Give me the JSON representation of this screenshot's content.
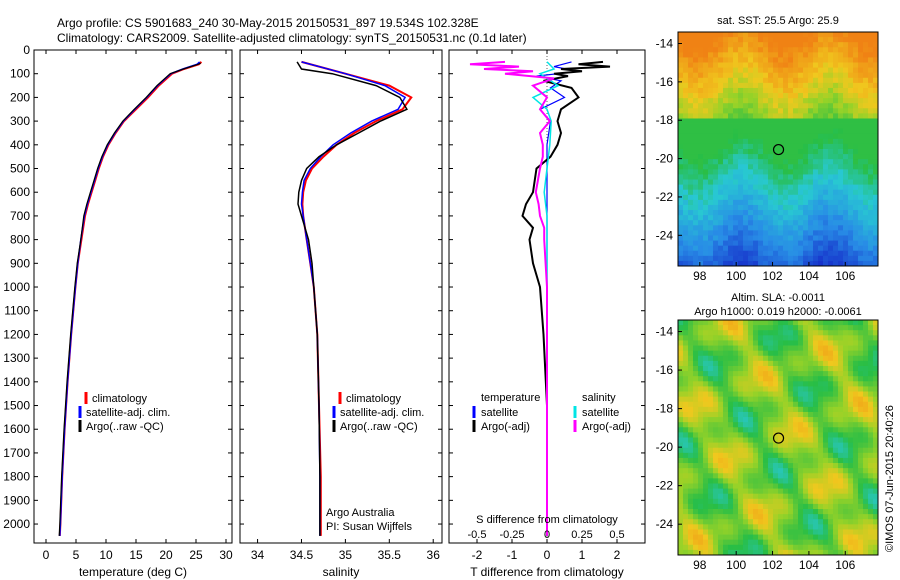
{
  "header": {
    "line1": "Argo profile: CS 5901683_240 30-May-2015 20150531_897 19.534S 102.328E",
    "line2": "Climatology: CARS2009. Satellite-adjusted climatology: synTS_20150531.nc (0.1d later)"
  },
  "colors": {
    "climatology": "#ff0000",
    "satellite": "#0000ff",
    "argo": "#000000",
    "sal_satellite": "#00e5e5",
    "sal_argo": "#ff00ff"
  },
  "chart_data": [
    {
      "id": "temperature",
      "type": "line",
      "xlabel": "temperature (deg C)",
      "ylabel": "",
      "xlim": [
        -2,
        31
      ],
      "ylim": [
        2080,
        0
      ],
      "xticks": [
        0,
        5,
        10,
        15,
        20,
        25,
        30
      ],
      "yticks": [
        0,
        100,
        200,
        300,
        400,
        500,
        600,
        700,
        800,
        900,
        1000,
        1100,
        1200,
        1300,
        1400,
        1500,
        1600,
        1700,
        1800,
        1900,
        2000
      ],
      "legend": [
        "climatology",
        "satellite-adj. clim.",
        "Argo(..raw -QC)"
      ],
      "series": [
        {
          "name": "climatology",
          "depth": [
            50,
            60,
            80,
            100,
            150,
            200,
            250,
            300,
            350,
            400,
            450,
            500,
            550,
            600,
            650,
            700,
            800,
            900,
            1000,
            1200,
            1400,
            1600,
            1800,
            2000,
            2050
          ],
          "values": [
            25.9,
            25.5,
            23.0,
            21.0,
            18.8,
            17.0,
            15.0,
            13.0,
            11.6,
            10.4,
            9.5,
            8.8,
            8.2,
            7.6,
            7.0,
            6.5,
            5.9,
            5.3,
            4.9,
            4.2,
            3.6,
            3.1,
            2.7,
            2.4,
            2.3
          ]
        },
        {
          "name": "satellite-adj. clim.",
          "depth": [
            50,
            60,
            80,
            100,
            150,
            200,
            250,
            300,
            350,
            400,
            450,
            500,
            550,
            600,
            650,
            700,
            800,
            900,
            1000,
            1200,
            1400,
            1600,
            1800,
            2000,
            2050
          ],
          "values": [
            25.6,
            25.2,
            22.8,
            20.8,
            18.6,
            16.8,
            14.8,
            12.9,
            11.5,
            10.3,
            9.4,
            8.7,
            8.1,
            7.5,
            6.9,
            6.4,
            5.8,
            5.3,
            4.9,
            4.2,
            3.6,
            3.1,
            2.7,
            2.4,
            2.3
          ]
        },
        {
          "name": "Argo(..raw -QC)",
          "depth": [
            55,
            60,
            80,
            100,
            150,
            200,
            250,
            300,
            350,
            400,
            450,
            500,
            550,
            600,
            650,
            700,
            800,
            900,
            1000,
            1200,
            1400,
            1600,
            1800,
            2000,
            2050
          ],
          "values": [
            25.8,
            25.4,
            22.9,
            20.7,
            18.5,
            16.7,
            14.7,
            12.8,
            11.4,
            10.2,
            9.3,
            8.6,
            8.0,
            7.4,
            6.8,
            6.3,
            5.8,
            5.2,
            4.8,
            4.1,
            3.5,
            3.0,
            2.6,
            2.3,
            2.2
          ]
        }
      ]
    },
    {
      "id": "salinity",
      "type": "line",
      "xlabel": "salinity",
      "ylabel": "",
      "xlim": [
        33.8,
        36.1
      ],
      "ylim": [
        2080,
        0
      ],
      "xticks": [
        34,
        34.5,
        35,
        35.5,
        36
      ],
      "legend": [
        "climatology",
        "satellite-adj. clim.",
        "Argo(..raw -QC)"
      ],
      "annotation": [
        "Argo Australia",
        "PI: Susan Wijffels"
      ],
      "series": [
        {
          "name": "climatology",
          "depth": [
            50,
            100,
            150,
            200,
            250,
            300,
            350,
            400,
            450,
            500,
            550,
            600,
            650,
            700,
            800,
            900,
            1000,
            1200,
            1500,
            1800,
            2050
          ],
          "values": [
            34.5,
            35.0,
            35.5,
            35.75,
            35.65,
            35.35,
            35.1,
            34.9,
            34.75,
            34.62,
            34.55,
            34.52,
            34.51,
            34.52,
            34.56,
            34.6,
            34.64,
            34.68,
            34.7,
            34.72,
            34.72
          ]
        },
        {
          "name": "satellite-adj. clim.",
          "depth": [
            50,
            100,
            150,
            200,
            250,
            300,
            350,
            400,
            450,
            500,
            550,
            600,
            650,
            700,
            800,
            900,
            1000,
            1200,
            1500,
            1800,
            2050
          ],
          "values": [
            34.5,
            35.0,
            35.45,
            35.68,
            35.6,
            35.3,
            35.06,
            34.86,
            34.72,
            34.6,
            34.53,
            34.51,
            34.5,
            34.52,
            34.56,
            34.6,
            34.64,
            34.68,
            34.7,
            34.71,
            34.71
          ]
        },
        {
          "name": "Argo(..raw -QC)",
          "depth": [
            50,
            80,
            100,
            150,
            200,
            250,
            300,
            350,
            400,
            450,
            500,
            550,
            600,
            650,
            700,
            800,
            900,
            1000,
            1200,
            1500,
            1800,
            2050
          ],
          "values": [
            34.45,
            34.5,
            34.85,
            35.35,
            35.62,
            35.7,
            35.4,
            35.15,
            34.9,
            34.7,
            34.56,
            34.5,
            34.47,
            34.46,
            34.5,
            34.58,
            34.62,
            34.64,
            34.68,
            34.7,
            34.71,
            34.71
          ]
        }
      ]
    },
    {
      "id": "differences",
      "type": "line",
      "xlabel": "T difference from climatology",
      "title_top": "S difference from climatology",
      "xlim": [
        -2.8,
        2.8
      ],
      "ylim": [
        2080,
        0
      ],
      "xticks": [
        -2,
        -1,
        0,
        1,
        2
      ],
      "sticks": [
        -0.5,
        -0.25,
        0,
        0.25,
        0.5
      ],
      "s_tick_labels": [
        "-0.5",
        "-0.25",
        "0",
        "0.25",
        "0.5"
      ],
      "legend": {
        "temperature_header": "temperature",
        "salinity_header": "salinity",
        "t_satellite": "satellite",
        "t_argo": "Argo(-adj)",
        "s_satellite": "satellite",
        "s_argo": "Argo(-adj)"
      },
      "series": [
        {
          "name": "T satellite",
          "depth": [
            50,
            70,
            90,
            110,
            130,
            160,
            200,
            250,
            300,
            400,
            500,
            600,
            800,
            1000,
            1500,
            2050
          ],
          "values": [
            0.7,
            0.2,
            0.9,
            -0.3,
            0.4,
            0.1,
            0.5,
            -0.2,
            0.1,
            0.0,
            0.0,
            0.0,
            0.0,
            0.0,
            0.0,
            0.0
          ]
        },
        {
          "name": "T Argo(-adj)",
          "depth": [
            50,
            60,
            70,
            80,
            90,
            100,
            110,
            130,
            160,
            200,
            250,
            300,
            350,
            400,
            450,
            500,
            600,
            650,
            700,
            750,
            800,
            900,
            1000,
            1200,
            1500,
            1800,
            2050
          ],
          "values": [
            1.6,
            0.9,
            1.8,
            0.4,
            1.0,
            0.2,
            0.6,
            -0.1,
            0.7,
            0.9,
            0.4,
            0.3,
            0.4,
            0.3,
            0.1,
            -0.3,
            -0.4,
            -0.6,
            -0.7,
            -0.4,
            -0.5,
            -0.4,
            -0.2,
            -0.1,
            0.0,
            0.0,
            0.0
          ]
        },
        {
          "name": "S satellite",
          "depth": [
            50,
            80,
            100,
            150,
            200,
            250,
            300,
            400,
            500,
            600,
            700,
            800,
            1000,
            1500,
            2050
          ],
          "values": [
            0.0,
            0.05,
            -0.05,
            0.08,
            -0.1,
            0.0,
            0.03,
            0.02,
            0.0,
            -0.02,
            0.0,
            0.0,
            0.0,
            0.0,
            0.0
          ]
        },
        {
          "name": "S Argo(-adj)",
          "depth": [
            50,
            60,
            70,
            80,
            90,
            100,
            120,
            150,
            200,
            250,
            300,
            350,
            400,
            450,
            500,
            600,
            650,
            700,
            750,
            800,
            1000,
            1500,
            2050
          ],
          "values": [
            -0.3,
            -0.55,
            -0.2,
            -0.45,
            -0.1,
            -0.3,
            0.05,
            -0.1,
            0.0,
            -0.05,
            0.02,
            -0.05,
            -0.03,
            -0.03,
            -0.05,
            -0.08,
            -0.06,
            -0.05,
            -0.02,
            -0.02,
            0.0,
            0.0,
            0.0
          ]
        }
      ]
    },
    {
      "id": "sst_map",
      "type": "heatmap",
      "title": "sat. SST: 25.5 Argo: 25.9",
      "xticks": [
        98,
        100,
        102,
        104,
        106
      ],
      "yticks": [
        -14,
        -16,
        -18,
        -20,
        -22,
        -24
      ],
      "xlim": [
        96.8,
        107.8
      ],
      "ylim": [
        -25.6,
        -13.4
      ],
      "marker": [
        102.33,
        -19.53
      ]
    },
    {
      "id": "sla_map",
      "type": "heatmap",
      "title": "Altim. SLA: -0.0011",
      "subtitle": "Argo h1000: 0.019 h2000: -0.0061",
      "xticks": [
        98,
        100,
        102,
        104,
        106
      ],
      "yticks": [
        -14,
        -16,
        -18,
        -20,
        -22,
        -24
      ],
      "xlim": [
        96.8,
        107.8
      ],
      "ylim": [
        -25.6,
        -13.4
      ],
      "marker": [
        102.33,
        -19.53
      ]
    }
  ],
  "credit": "©IMOS 07-Jun-2015 20:40:26"
}
